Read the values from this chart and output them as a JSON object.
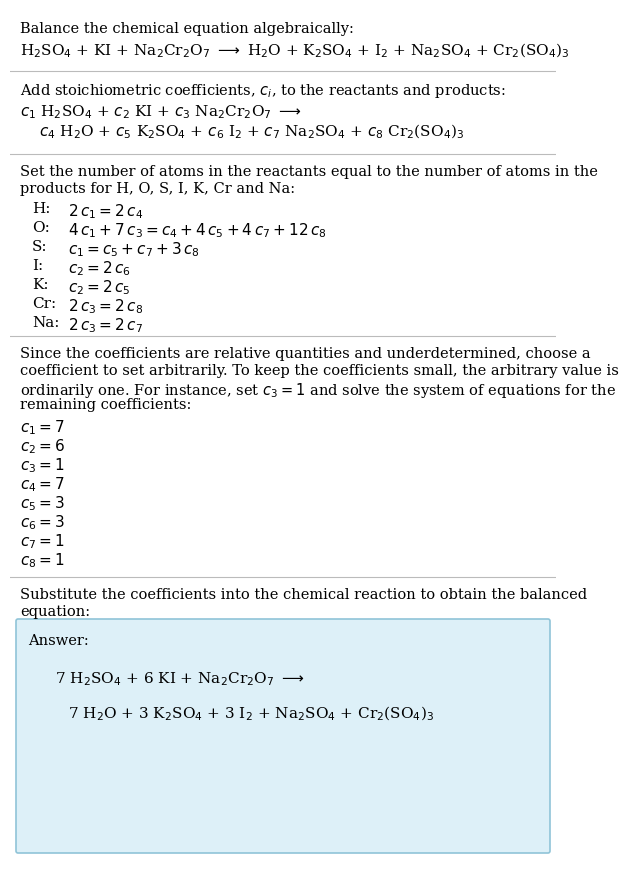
{
  "title_line1": "Balance the chemical equation algebraically:",
  "section2_intro": "Add stoichiometric coefficients, $c_i$, to the reactants and products:",
  "section3_intro1": "Set the number of atoms in the reactants equal to the number of atoms in the",
  "section3_intro2": "products for H, O, S, I, K, Cr and Na:",
  "section4_intro1": "Since the coefficients are relative quantities and underdetermined, choose a",
  "section4_intro2": "coefficient to set arbitrarily. To keep the coefficients small, the arbitrary value is",
  "section4_intro3": "ordinarily one. For instance, set $c_3 = 1$ and solve the system of equations for the",
  "section4_intro4": "remaining coefficients:",
  "section5_intro1": "Substitute the coefficients into the chemical reaction to obtain the balanced",
  "section5_intro2": "equation:",
  "answer_label": "Answer:",
  "bg_color": "#ffffff",
  "answer_box_color": "#ddf0f8",
  "answer_box_border": "#90c4d8",
  "text_color": "#000000",
  "separator_color": "#bbbbbb",
  "font_size": 10.5,
  "math_font_size": 11.0
}
